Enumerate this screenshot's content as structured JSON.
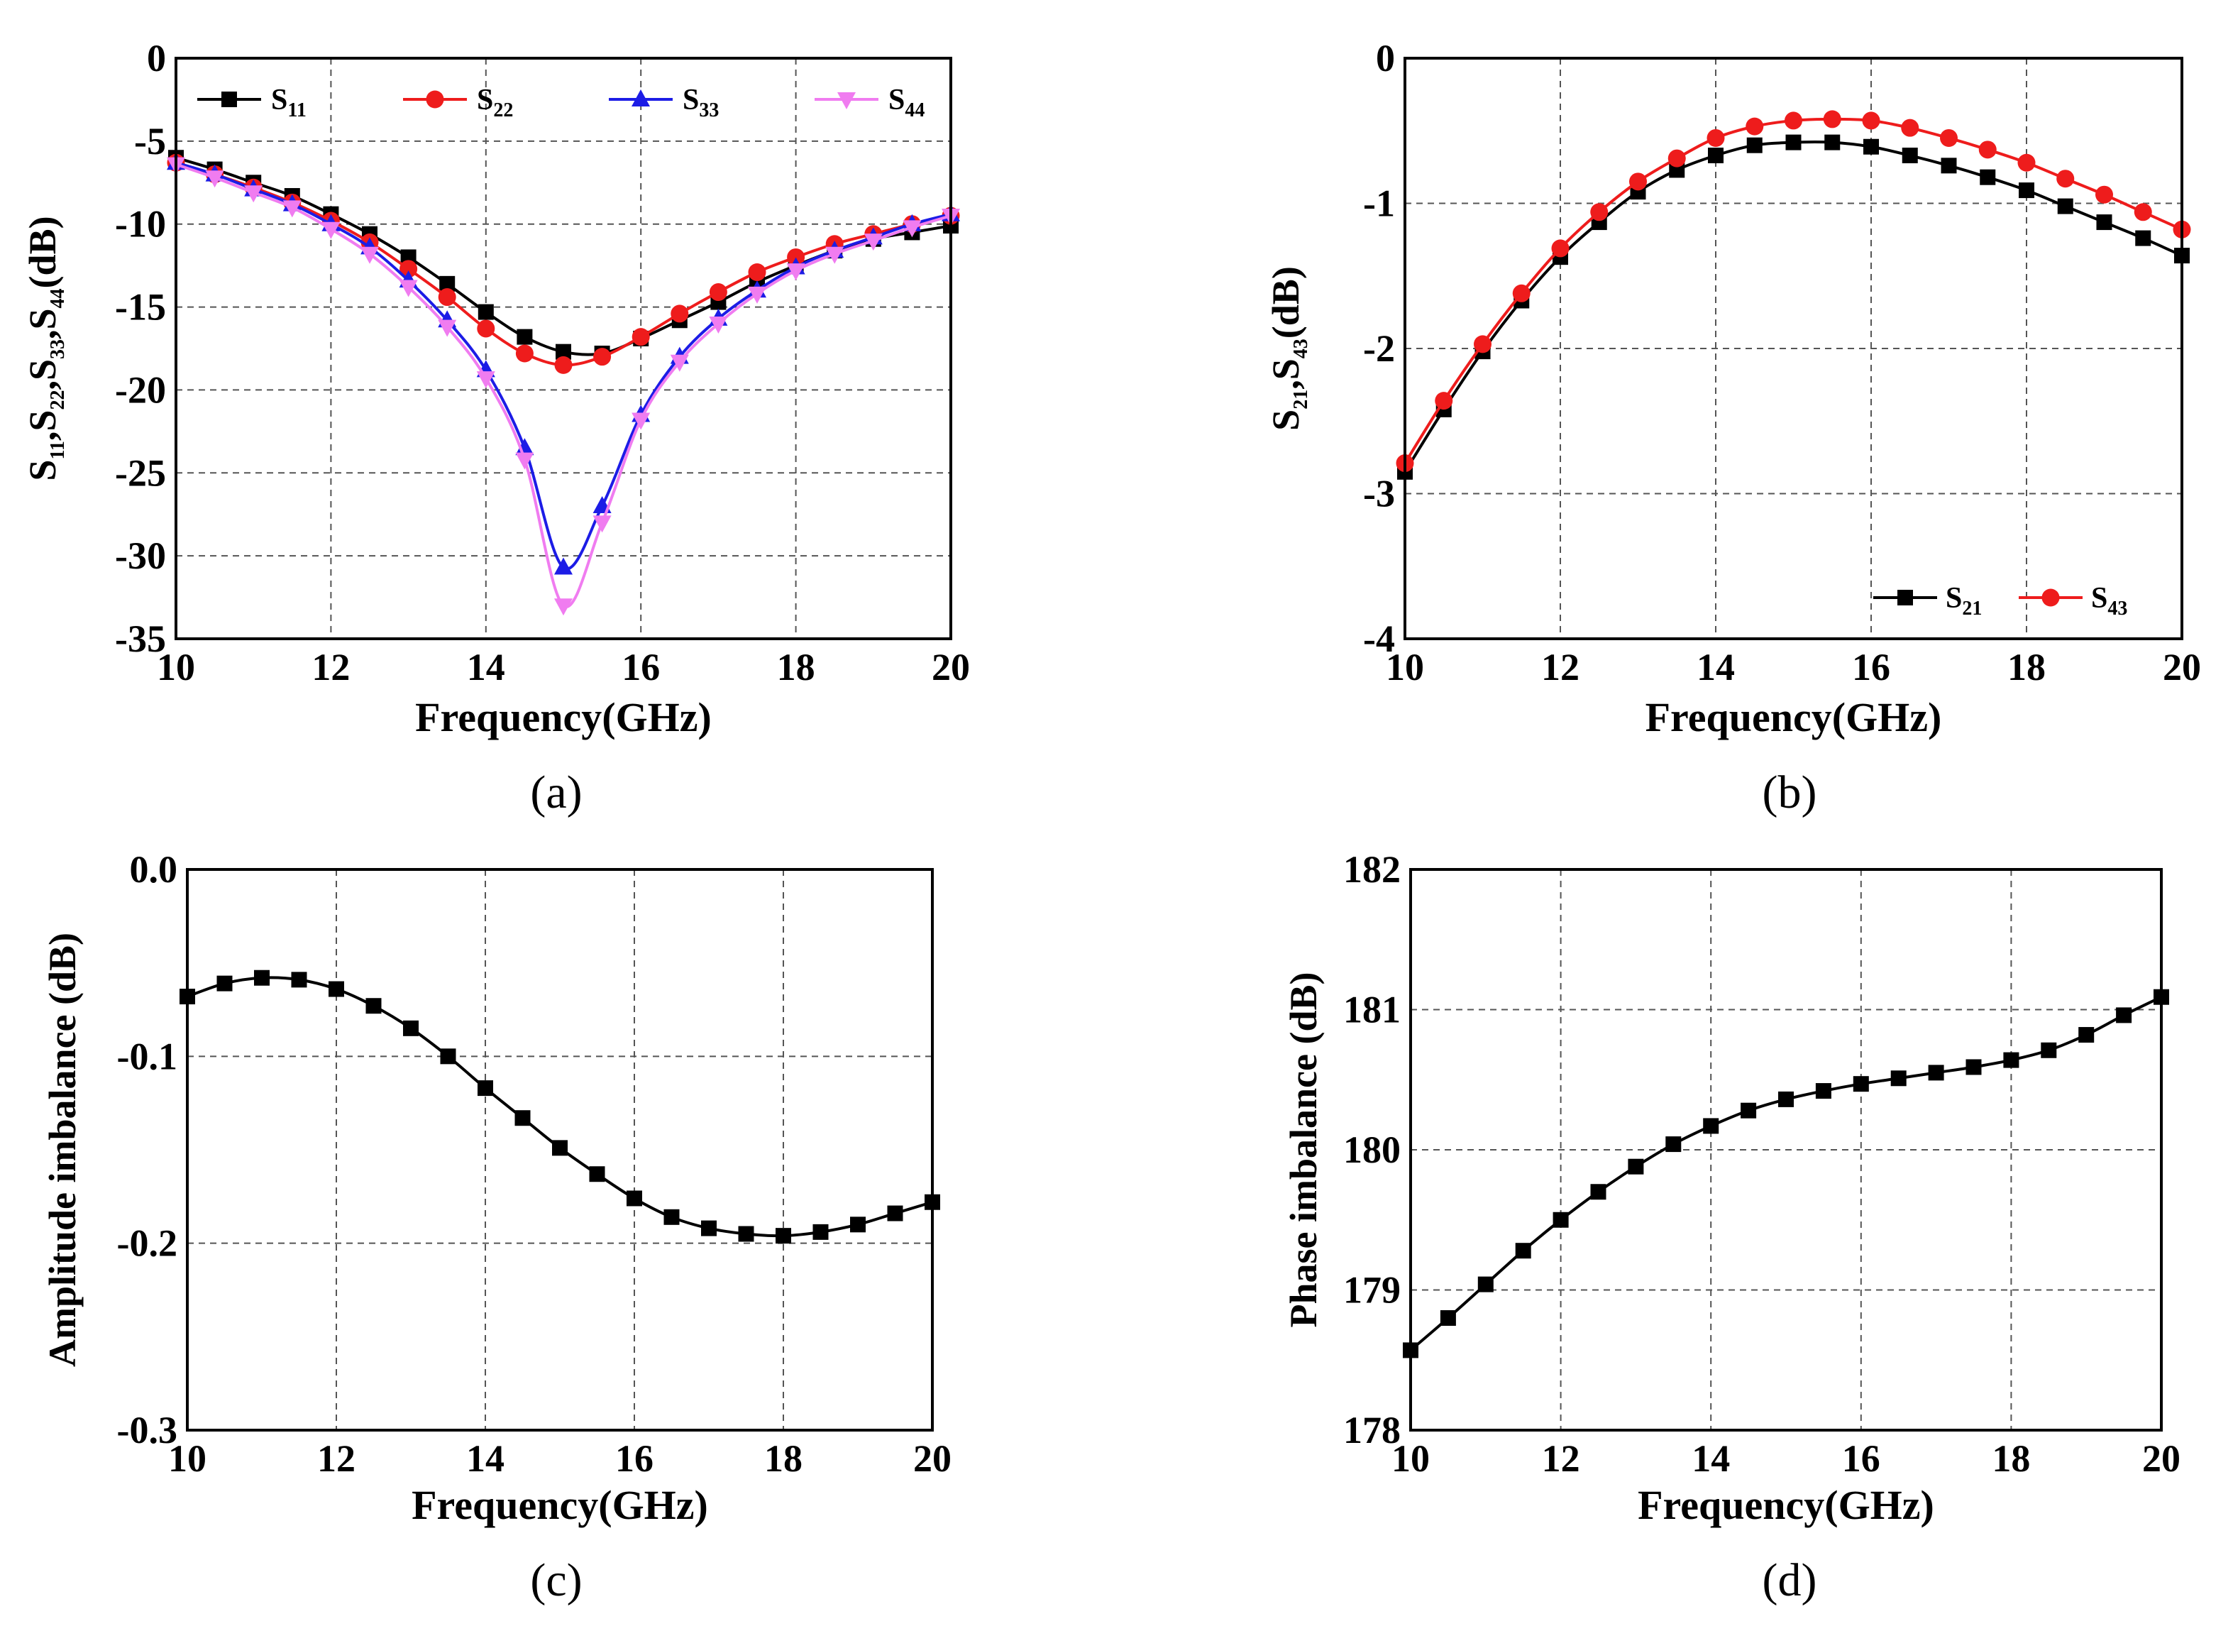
{
  "chart_data": [
    {
      "id": "a",
      "type": "line",
      "panel_label": "(a)",
      "xlabel": "Frequency(GHz)",
      "ylabel": [
        {
          "t": "S"
        },
        {
          "t": "11",
          "sub": true
        },
        {
          "t": ",S"
        },
        {
          "t": "22",
          "sub": true
        },
        {
          "t": ",S"
        },
        {
          "t": "33",
          "sub": true
        },
        {
          "t": ",S"
        },
        {
          "t": "44",
          "sub": true
        },
        {
          "t": "(dB)"
        }
      ],
      "xlim": [
        10,
        20
      ],
      "ylim": [
        -35,
        0
      ],
      "xticks": [
        "10",
        "12",
        "14",
        "16",
        "18",
        "20"
      ],
      "yticks": [
        "0",
        "-5",
        "-10",
        "-15",
        "-20",
        "-25",
        "-30",
        "-35"
      ],
      "grid": true,
      "legend_position": "top",
      "x": [
        10,
        10.5,
        11,
        11.5,
        12,
        12.5,
        13,
        13.5,
        14,
        14.5,
        15,
        15.5,
        16,
        16.5,
        17,
        17.5,
        18,
        18.5,
        19,
        19.5,
        20
      ],
      "series": [
        {
          "name": "S",
          "sub": "11",
          "color": "#000000",
          "marker": "square",
          "values": [
            -6.0,
            -6.7,
            -7.5,
            -8.3,
            -9.4,
            -10.6,
            -12.0,
            -13.6,
            -15.3,
            -16.8,
            -17.7,
            -17.8,
            -16.9,
            -15.8,
            -14.7,
            -13.5,
            -12.5,
            -11.6,
            -10.9,
            -10.5,
            -10.1
          ]
        },
        {
          "name": "S",
          "sub": "22",
          "color": "#ee1c1c",
          "marker": "circle",
          "values": [
            -6.3,
            -7.0,
            -7.8,
            -8.7,
            -9.8,
            -11.1,
            -12.7,
            -14.4,
            -16.3,
            -17.8,
            -18.5,
            -18.0,
            -16.8,
            -15.4,
            -14.1,
            -12.9,
            -12.0,
            -11.2,
            -10.6,
            -10.0,
            -9.5
          ]
        },
        {
          "name": "S",
          "sub": "33",
          "color": "#1c1ce6",
          "marker": "triangle-up",
          "values": [
            -6.3,
            -7.0,
            -7.9,
            -8.8,
            -10.0,
            -11.4,
            -13.4,
            -15.8,
            -18.8,
            -23.5,
            -30.7,
            -27.0,
            -21.5,
            -18.0,
            -15.7,
            -14.0,
            -12.6,
            -11.6,
            -10.8,
            -10.0,
            -9.4
          ]
        },
        {
          "name": "S",
          "sub": "44",
          "color": "#f07cf0",
          "marker": "triangle-down",
          "values": [
            -6.4,
            -7.2,
            -8.1,
            -9.0,
            -10.3,
            -11.8,
            -13.8,
            -16.2,
            -19.3,
            -24.2,
            -33.0,
            -28.0,
            -21.8,
            -18.3,
            -16.0,
            -14.2,
            -12.8,
            -11.8,
            -11.0,
            -10.2,
            -9.5
          ]
        }
      ]
    },
    {
      "id": "b",
      "type": "line",
      "panel_label": "(b)",
      "xlabel": "Frequency(GHz)",
      "ylabel": [
        {
          "t": "S"
        },
        {
          "t": "21",
          "sub": true
        },
        {
          "t": ",S"
        },
        {
          "t": "43",
          "sub": true
        },
        {
          "t": "(dB)"
        }
      ],
      "xlim": [
        10,
        20
      ],
      "ylim": [
        -4,
        0
      ],
      "xticks": [
        "10",
        "12",
        "14",
        "16",
        "18",
        "20"
      ],
      "yticks": [
        "0",
        "-1",
        "-2",
        "-3",
        "-4"
      ],
      "grid": true,
      "legend_position": "bottom-right",
      "x": [
        10,
        10.5,
        11,
        11.5,
        12,
        12.5,
        13,
        13.5,
        14,
        14.5,
        15,
        15.5,
        16,
        16.5,
        17,
        17.5,
        18,
        18.5,
        19,
        19.5,
        20
      ],
      "series": [
        {
          "name": "S",
          "sub": "21",
          "color": "#000000",
          "marker": "square",
          "values": [
            -2.85,
            -2.42,
            -2.02,
            -1.67,
            -1.37,
            -1.13,
            -0.92,
            -0.77,
            -0.67,
            -0.6,
            -0.58,
            -0.58,
            -0.61,
            -0.67,
            -0.74,
            -0.82,
            -0.91,
            -1.02,
            -1.13,
            -1.24,
            -1.36
          ]
        },
        {
          "name": "S",
          "sub": "43",
          "color": "#ee1c1c",
          "marker": "circle",
          "values": [
            -2.79,
            -2.36,
            -1.97,
            -1.62,
            -1.31,
            -1.06,
            -0.85,
            -0.69,
            -0.55,
            -0.47,
            -0.43,
            -0.42,
            -0.43,
            -0.48,
            -0.55,
            -0.63,
            -0.72,
            -0.83,
            -0.94,
            -1.06,
            -1.18
          ]
        }
      ]
    },
    {
      "id": "c",
      "type": "line",
      "panel_label": "(c)",
      "xlabel": "Frequency(GHz)",
      "ylabel": [
        {
          "t": "Amplitude imbalance (dB)"
        }
      ],
      "xlim": [
        10,
        20
      ],
      "ylim": [
        -0.3,
        0.0
      ],
      "xticks": [
        "10",
        "12",
        "14",
        "16",
        "18",
        "20"
      ],
      "yticks": [
        "0.0",
        "-0.1",
        "-0.2",
        "-0.3"
      ],
      "grid": true,
      "x": [
        10,
        10.5,
        11,
        11.5,
        12,
        12.5,
        13,
        13.5,
        14,
        14.5,
        15,
        15.5,
        16,
        16.5,
        17,
        17.5,
        18,
        18.5,
        19,
        19.5,
        20
      ],
      "series": [
        {
          "name": "Amplitude imbalance",
          "color": "#000000",
          "marker": "square",
          "values": [
            -0.068,
            -0.061,
            -0.058,
            -0.059,
            -0.064,
            -0.073,
            -0.085,
            -0.1,
            -0.117,
            -0.133,
            -0.149,
            -0.163,
            -0.176,
            -0.186,
            -0.192,
            -0.195,
            -0.196,
            -0.194,
            -0.19,
            -0.184,
            -0.178
          ]
        }
      ]
    },
    {
      "id": "d",
      "type": "line",
      "panel_label": "(d)",
      "xlabel": "Frequency(GHz)",
      "ylabel": [
        {
          "t": "Phase imbalance (dB)"
        }
      ],
      "xlim": [
        10,
        20
      ],
      "ylim": [
        178,
        182
      ],
      "xticks": [
        "10",
        "12",
        "14",
        "16",
        "18",
        "20"
      ],
      "yticks": [
        "182",
        "181",
        "180",
        "179",
        "178"
      ],
      "grid": true,
      "x": [
        10,
        10.5,
        11,
        11.5,
        12,
        12.5,
        13,
        13.5,
        14,
        14.5,
        15,
        15.5,
        16,
        16.5,
        17,
        17.5,
        18,
        18.5,
        19,
        19.5,
        20
      ],
      "series": [
        {
          "name": "Phase imbalance",
          "color": "#000000",
          "marker": "square",
          "values": [
            178.57,
            178.8,
            179.04,
            179.28,
            179.5,
            179.7,
            179.88,
            180.04,
            180.17,
            180.28,
            180.36,
            180.42,
            180.47,
            180.51,
            180.55,
            180.59,
            180.64,
            180.71,
            180.82,
            180.96,
            181.09
          ]
        }
      ]
    }
  ]
}
